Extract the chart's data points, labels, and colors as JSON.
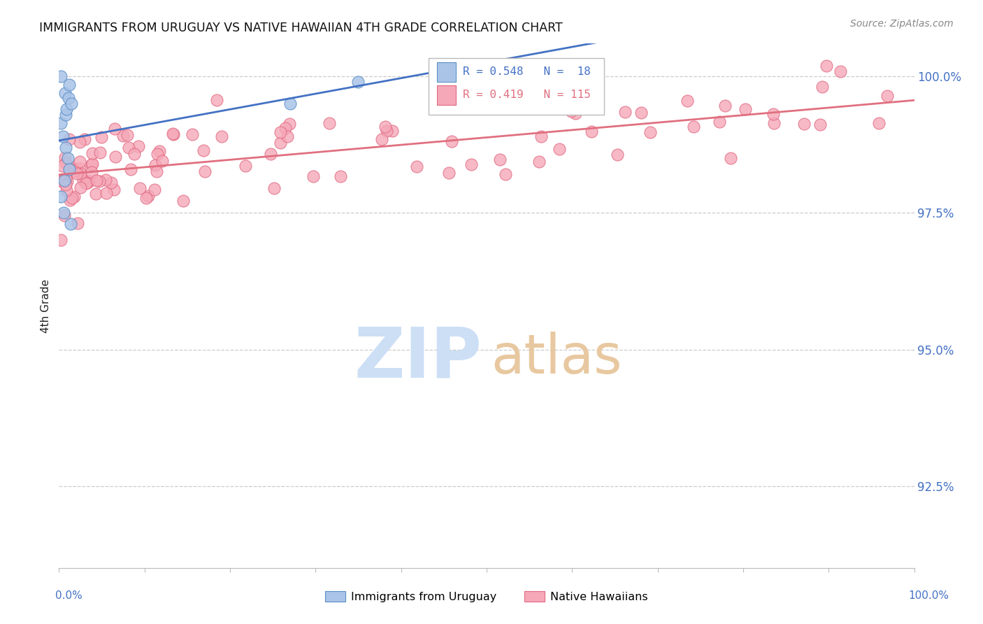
{
  "title": "IMMIGRANTS FROM URUGUAY VS NATIVE HAWAIIAN 4TH GRADE CORRELATION CHART",
  "source": "Source: ZipAtlas.com",
  "ylabel": "4th Grade",
  "yticks": [
    92.5,
    95.0,
    97.5,
    100.0
  ],
  "ytick_labels": [
    "92.5%",
    "95.0%",
    "97.5%",
    "100.0%"
  ],
  "xmin": 0.0,
  "xmax": 1.0,
  "ymin": 91.0,
  "ymax": 100.6,
  "blue_color": "#aac4e8",
  "pink_color": "#f5a8b8",
  "blue_edge_color": "#5b8ec4",
  "pink_edge_color": "#e06880",
  "blue_line_color": "#4472c4",
  "pink_line_color": "#e07080",
  "watermark_zip_color": "#ccdff5",
  "watermark_atlas_color": "#e8c8a0",
  "legend_line1": "R = 0.548   N =  18",
  "legend_line2": "R = 0.419   N = 115"
}
